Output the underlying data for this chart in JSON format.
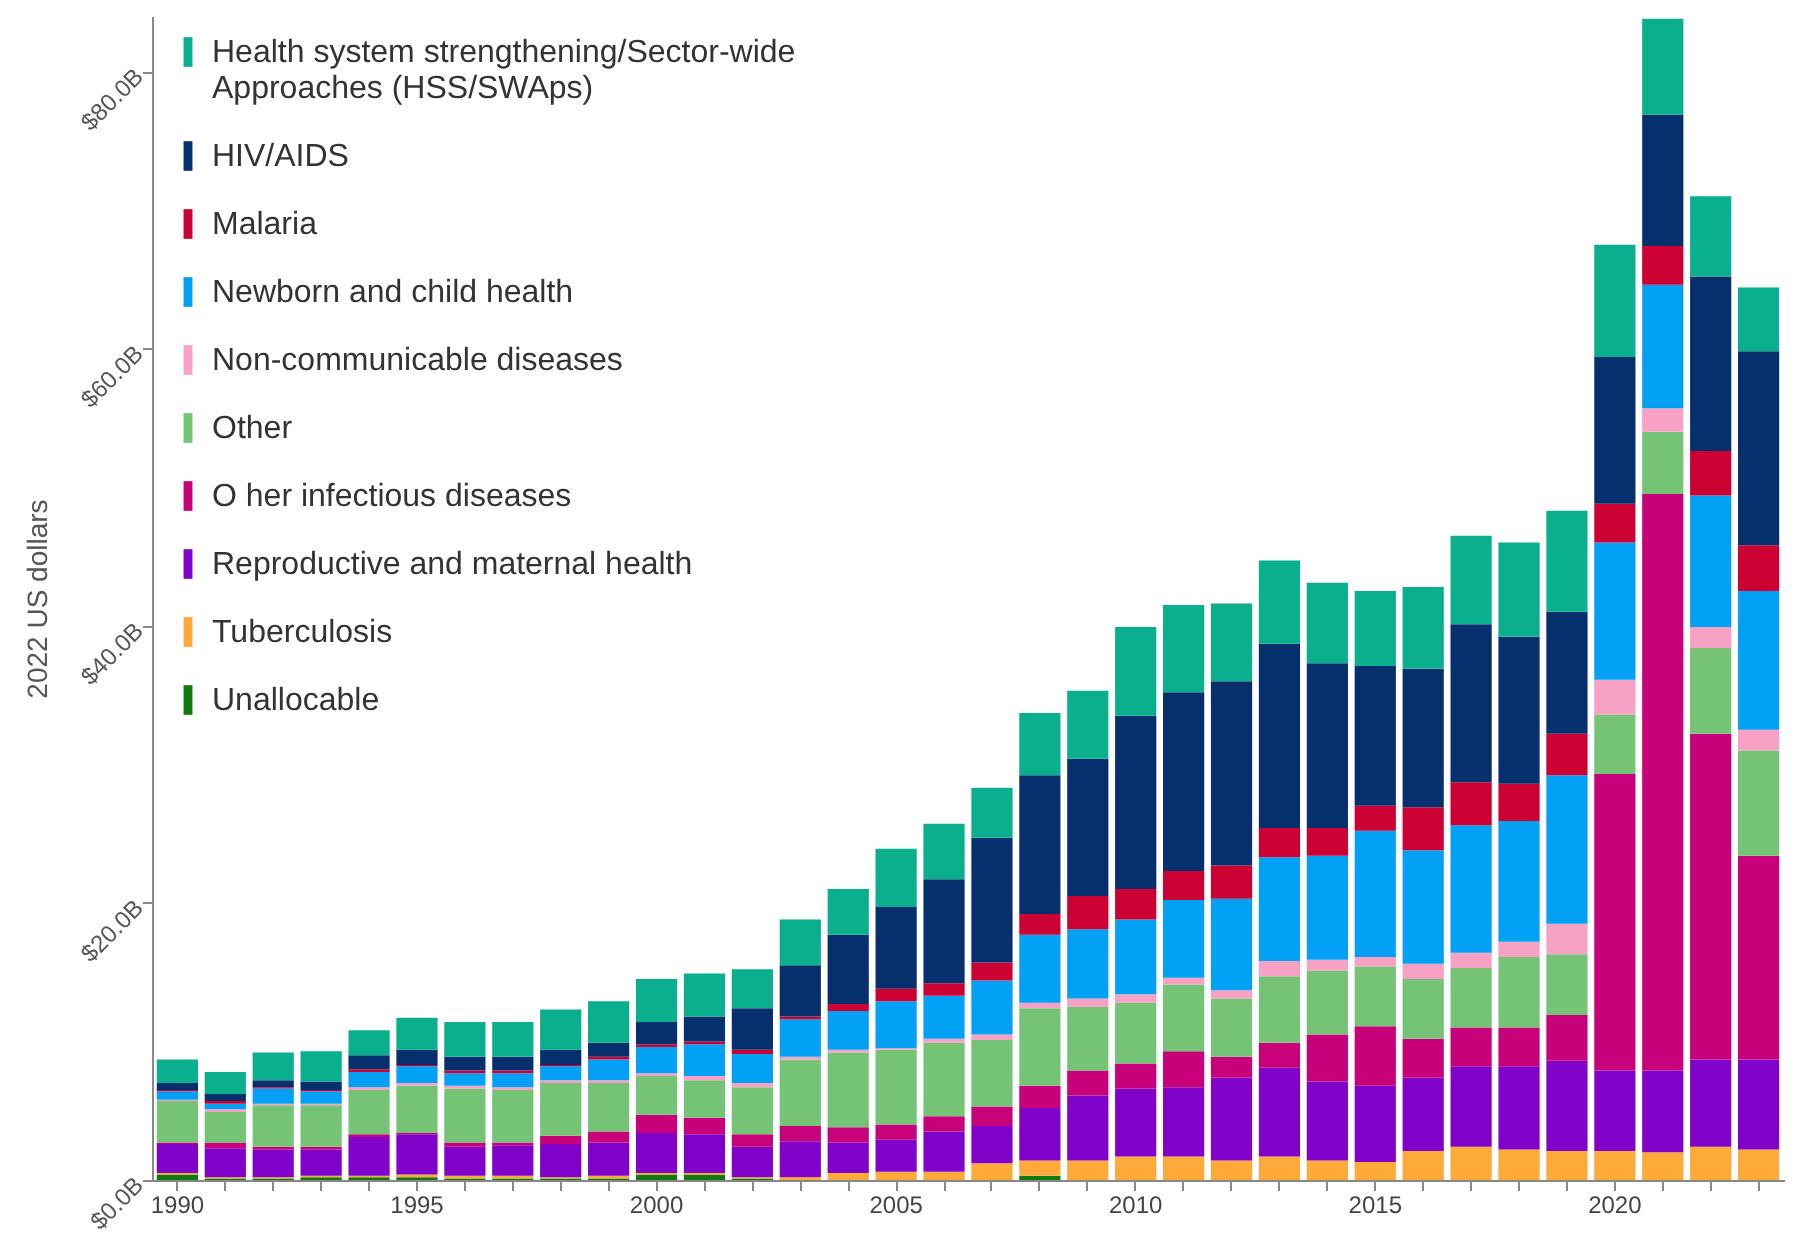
{
  "chart_data": {
    "type": "bar",
    "stacked": true,
    "ylabel": "2022 US dollars",
    "legend": "top left",
    "categories": [
      "1990",
      null,
      null,
      null,
      null,
      "1995",
      null,
      null,
      null,
      null,
      "2000",
      null,
      null,
      null,
      null,
      "2005",
      null,
      null,
      null,
      null,
      "2010",
      null,
      null,
      null,
      null,
      "2015",
      null,
      null,
      null,
      null,
      "2020",
      null,
      null,
      null
    ],
    "ylim": [
      0,
      84
    ],
    "yticks": [
      {
        "value": 0,
        "label": "$0.0B"
      },
      {
        "value": 20,
        "label": "$20.0B"
      },
      {
        "value": 40,
        "label": "$40.0B"
      },
      {
        "value": 60,
        "label": "$60.0B"
      },
      {
        "value": 80,
        "label": "$80.0B"
      }
    ],
    "series": [
      {
        "name": "Unallocable",
        "color": "#107a10",
        "values": [
          0.4,
          0.1,
          0.1,
          0.2,
          0.2,
          0.2,
          0.1,
          0.1,
          0.1,
          0.1,
          0.4,
          0.4,
          0.1,
          0,
          0,
          0,
          0,
          0,
          0.3,
          0,
          0,
          0,
          0,
          0,
          0,
          0,
          0,
          0,
          0,
          0,
          0,
          0,
          0,
          0
        ]
      },
      {
        "name": "Tuberculosis",
        "color": "#fdaa3a",
        "values": [
          0.1,
          0.1,
          0.1,
          0.1,
          0.1,
          0.2,
          0.2,
          0.2,
          0.1,
          0.2,
          0.1,
          0.1,
          0.1,
          0.2,
          0.5,
          0.6,
          0.6,
          1.2,
          1.1,
          1.4,
          1.7,
          1.7,
          1.4,
          1.7,
          1.4,
          1.3,
          2.1,
          2.4,
          2.2,
          2.1,
          2.1,
          2.0,
          2.4,
          2.2
        ]
      },
      {
        "name": "Reproductive and maternal health",
        "color": "#8103c9",
        "values": [
          2.1,
          2.1,
          2.0,
          1.9,
          2.8,
          2.9,
          2.1,
          2.2,
          2.4,
          2.4,
          2.9,
          2.8,
          2.2,
          2.6,
          2.2,
          2.3,
          2.9,
          2.7,
          3.8,
          4.7,
          4.9,
          5.0,
          6.0,
          6.4,
          5.7,
          5.5,
          5.3,
          5.8,
          6.0,
          6.5,
          5.8,
          5.9,
          6.3,
          6.5
        ]
      },
      {
        "name": "O her infectious diseases",
        "color": "#c8017a",
        "values": [
          0.1,
          0.4,
          0.2,
          0.2,
          0.2,
          0.1,
          0.3,
          0.2,
          0.6,
          0.8,
          1.3,
          1.2,
          0.9,
          1.1,
          1.1,
          1.1,
          1.1,
          1.4,
          1.6,
          1.8,
          1.8,
          2.6,
          1.5,
          1.8,
          3.4,
          4.3,
          2.8,
          2.8,
          2.8,
          3.3,
          21.4,
          41.6,
          23.5,
          14.7
        ]
      },
      {
        "name": "Other",
        "color": "#75c476",
        "values": [
          3.0,
          2.2,
          3.0,
          3.0,
          3.2,
          3.4,
          3.9,
          3.8,
          3.8,
          3.5,
          2.8,
          2.7,
          3.4,
          4.8,
          5.4,
          5.4,
          5.3,
          4.8,
          5.6,
          4.6,
          4.4,
          4.8,
          4.2,
          4.8,
          4.6,
          4.3,
          4.3,
          4.3,
          5.1,
          4.4,
          4.3,
          4.5,
          6.2,
          7.6
        ]
      },
      {
        "name": "Non-communicable diseases",
        "color": "#f7a1c4",
        "values": [
          0.1,
          0.2,
          0.1,
          0.1,
          0.2,
          0.2,
          0.2,
          0.2,
          0.2,
          0.2,
          0.2,
          0.3,
          0.3,
          0.2,
          0.2,
          0.1,
          0.3,
          0.4,
          0.4,
          0.6,
          0.6,
          0.5,
          0.6,
          1.1,
          0.8,
          0.7,
          1.1,
          1.1,
          1.1,
          2.2,
          2.5,
          1.7,
          1.5,
          1.5
        ]
      },
      {
        "name": "Newborn and child health",
        "color": "#03a1f5",
        "values": [
          0.6,
          0.4,
          1.1,
          0.9,
          1.1,
          1.2,
          0.9,
          1.0,
          1.0,
          1.5,
          1.9,
          2.3,
          2.1,
          2.7,
          2.8,
          3.4,
          3.1,
          3.9,
          4.9,
          5.0,
          5.4,
          5.6,
          6.6,
          7.5,
          7.5,
          9.1,
          8.2,
          9.2,
          8.7,
          10.7,
          9.9,
          8.9,
          9.5,
          10.0
        ]
      },
      {
        "name": "Malaria",
        "color": "#cc0033",
        "values": [
          0.1,
          0.2,
          0.1,
          0.1,
          0.2,
          0.1,
          0.2,
          0.2,
          0.1,
          0.2,
          0.2,
          0.2,
          0.3,
          0.2,
          0.5,
          0.9,
          0.9,
          1.3,
          1.5,
          2.4,
          2.2,
          2.1,
          2.4,
          2.1,
          2.0,
          1.8,
          3.1,
          3.1,
          2.7,
          3.0,
          2.8,
          2.8,
          3.2,
          3.3
        ]
      },
      {
        "name": "HIV/AIDS",
        "color": "#062f6e",
        "values": [
          0.5,
          0.5,
          0.5,
          0.6,
          1.0,
          1.1,
          1.0,
          1.0,
          1.1,
          1.0,
          1.6,
          1.8,
          3.0,
          3.7,
          5.0,
          5.9,
          7.5,
          9.0,
          10.0,
          9.9,
          12.5,
          12.9,
          13.3,
          13.3,
          11.9,
          10.1,
          10.0,
          11.4,
          10.6,
          8.8,
          10.6,
          9.5,
          12.6,
          14.0
        ]
      },
      {
        "name": "Health system strengthening/Sector-wide Approaches (HSS/SWAps)",
        "color": "#0aaf8e",
        "values": [
          1.7,
          1.6,
          2.0,
          2.2,
          1.8,
          2.3,
          2.5,
          2.5,
          2.9,
          3.0,
          3.1,
          3.1,
          2.8,
          3.3,
          3.3,
          4.2,
          4.0,
          3.6,
          4.5,
          4.9,
          6.4,
          6.3,
          5.6,
          6.0,
          5.8,
          5.4,
          5.9,
          6.4,
          6.8,
          7.3,
          8.1,
          6.9,
          5.8,
          4.6
        ]
      }
    ]
  }
}
